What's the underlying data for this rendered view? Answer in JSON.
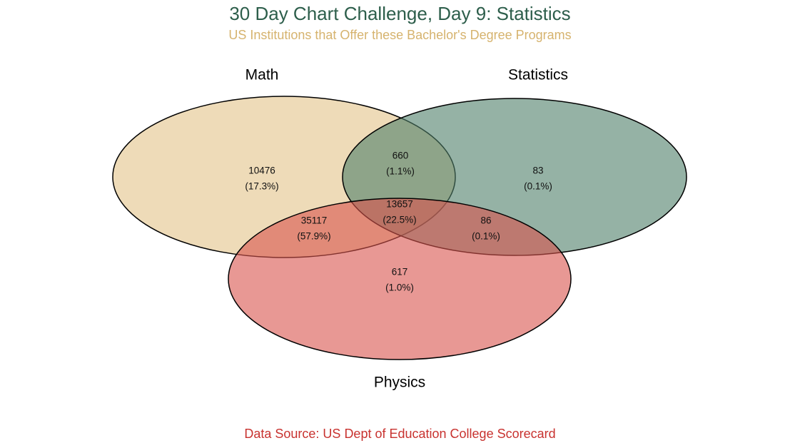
{
  "title": "30 Day Chart Challenge, Day 9: Statistics",
  "subtitle": "US Institutions that Offer these Bachelor's Degree Programs",
  "caption": "Data Source: US Dept of Education College Scorecard",
  "chart_data": {
    "type": "venn",
    "sets": [
      {
        "name": "Math",
        "color": "#e3c389"
      },
      {
        "name": "Statistics",
        "color": "#4e7f69"
      },
      {
        "name": "Physics",
        "color": "#d8534d"
      }
    ],
    "regions": [
      {
        "sets": [
          "Math"
        ],
        "count": "10476",
        "percent": "(17.3%)"
      },
      {
        "sets": [
          "Math",
          "Statistics"
        ],
        "count": "660",
        "percent": "(1.1%)"
      },
      {
        "sets": [
          "Statistics"
        ],
        "count": "83",
        "percent": "(0.1%)"
      },
      {
        "sets": [
          "Math",
          "Statistics",
          "Physics"
        ],
        "count": "13657",
        "percent": "(22.5%)"
      },
      {
        "sets": [
          "Math",
          "Physics"
        ],
        "count": "35117",
        "percent": "(57.9%)"
      },
      {
        "sets": [
          "Statistics",
          "Physics"
        ],
        "count": "86",
        "percent": "(0.1%)"
      },
      {
        "sets": [
          "Physics"
        ],
        "count": "617",
        "percent": "(1.0%)"
      }
    ]
  }
}
